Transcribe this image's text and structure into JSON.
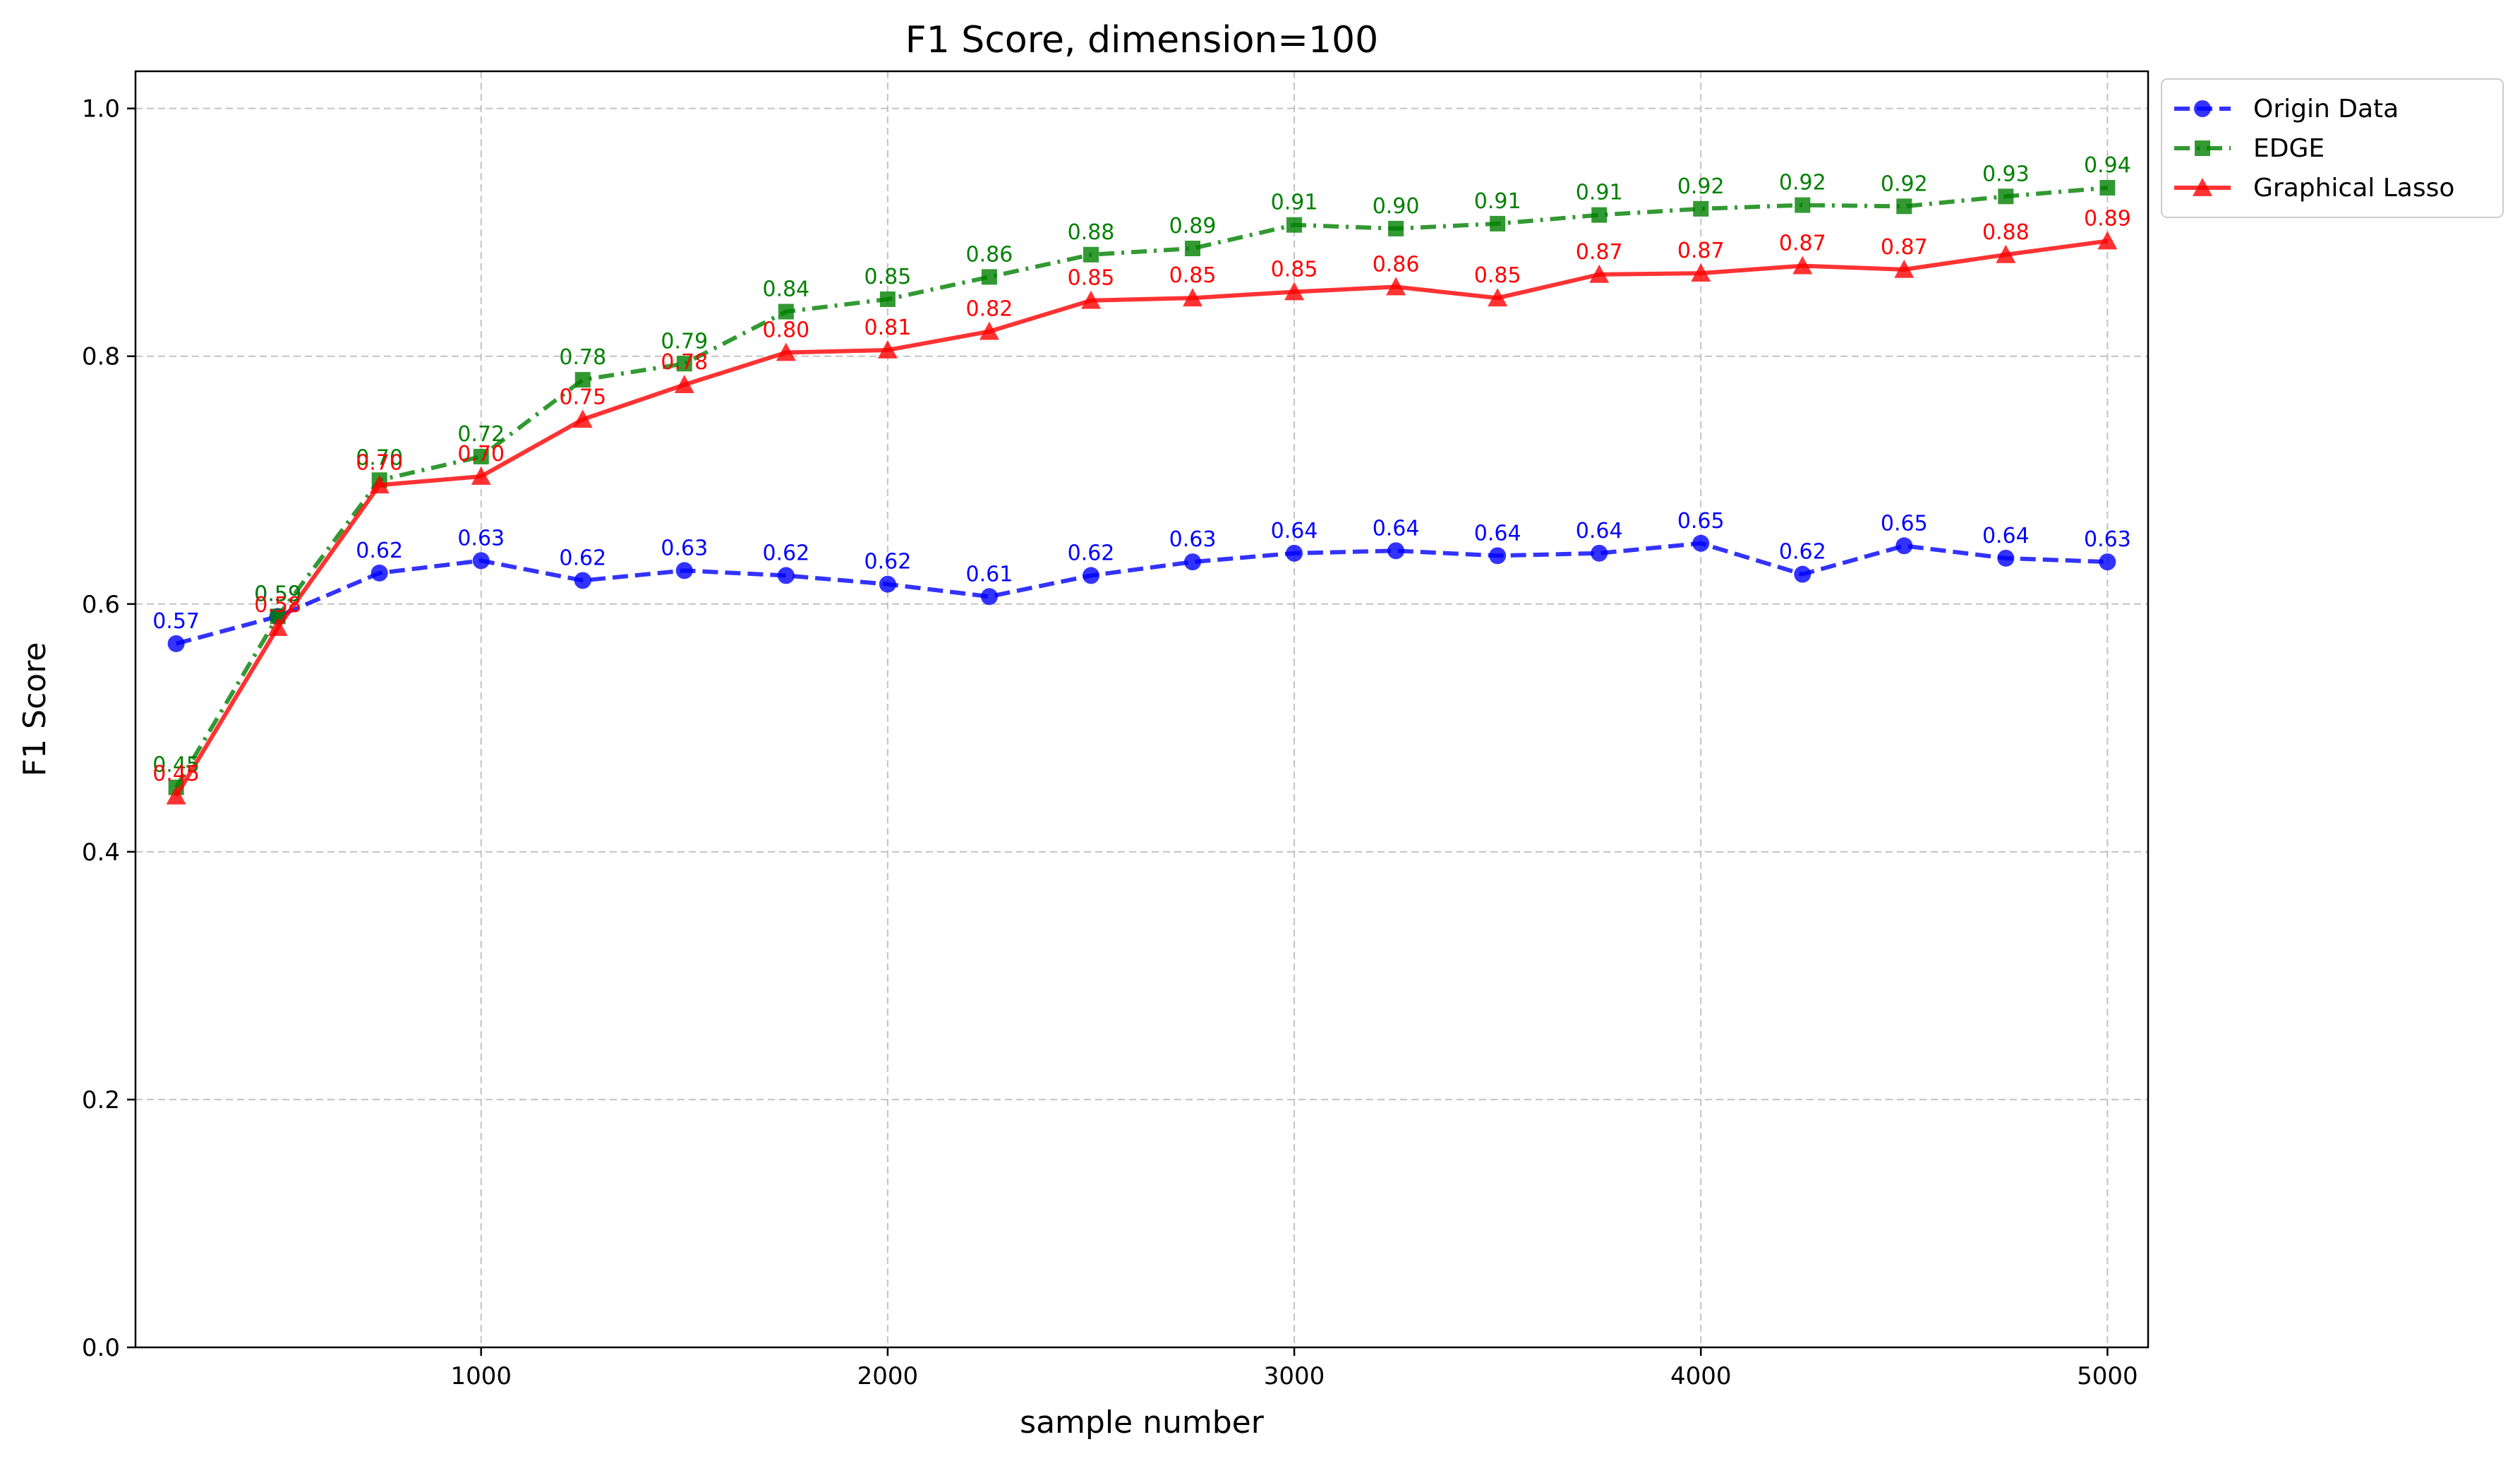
{
  "chart_data": {
    "type": "line",
    "title": "F1 Score, dimension=100",
    "xlabel": "sample number",
    "ylabel": "F1 Score",
    "xlim": [
      150,
      5100
    ],
    "ylim": [
      0.0,
      1.03
    ],
    "xticks": [
      1000,
      2000,
      3000,
      4000,
      5000
    ],
    "xtick_labels": [
      "1000",
      "2000",
      "3000",
      "4000",
      "5000"
    ],
    "yticks": [
      0.0,
      0.2,
      0.4,
      0.6,
      0.8,
      1.0
    ],
    "ytick_labels": [
      "0.0",
      "0.2",
      "0.4",
      "0.6",
      "0.8",
      "1.0"
    ],
    "grid": true,
    "legend_position": "outside-top-right",
    "x": [
      250,
      500,
      750,
      1000,
      1250,
      1500,
      1750,
      2000,
      2250,
      2500,
      2750,
      3000,
      3250,
      3500,
      3750,
      4000,
      4250,
      4500,
      4750,
      5000
    ],
    "series": [
      {
        "name": "Origin Data",
        "color": "#0000ff",
        "line_style": "dashed",
        "marker": "circle",
        "values": [
          0.568,
          0.59,
          0.625,
          0.635,
          0.619,
          0.627,
          0.623,
          0.616,
          0.606,
          0.623,
          0.634,
          0.641,
          0.643,
          0.639,
          0.641,
          0.649,
          0.624,
          0.647,
          0.637,
          0.634
        ],
        "labels": [
          "0.57",
          "0.59",
          "0.62",
          "0.63",
          "0.62",
          "0.63",
          "0.62",
          "0.62",
          "0.61",
          "0.62",
          "0.63",
          "0.64",
          "0.64",
          "0.64",
          "0.64",
          "0.65",
          "0.62",
          "0.65",
          "0.64",
          "0.63"
        ]
      },
      {
        "name": "EDGE",
        "color": "#008000",
        "line_style": "dashdot",
        "marker": "square",
        "values": [
          0.452,
          0.59,
          0.7,
          0.719,
          0.781,
          0.794,
          0.836,
          0.846,
          0.864,
          0.882,
          0.887,
          0.906,
          0.903,
          0.907,
          0.914,
          0.919,
          0.922,
          0.921,
          0.929,
          0.936
        ],
        "labels": [
          "0.45",
          "0.59",
          "0.70",
          "0.72",
          "0.78",
          "0.79",
          "0.84",
          "0.85",
          "0.86",
          "0.88",
          "0.89",
          "0.91",
          "0.90",
          "0.91",
          "0.91",
          "0.92",
          "0.92",
          "0.92",
          "0.93",
          "0.94"
        ]
      },
      {
        "name": "Graphical Lasso",
        "color": "#ff0000",
        "line_style": "solid",
        "marker": "triangle",
        "values": [
          0.445,
          0.581,
          0.696,
          0.703,
          0.749,
          0.777,
          0.803,
          0.805,
          0.82,
          0.845,
          0.847,
          0.852,
          0.856,
          0.847,
          0.866,
          0.867,
          0.873,
          0.87,
          0.882,
          0.893
        ],
        "labels": [
          "0.45",
          "0.58",
          "0.70",
          "0.70",
          "0.75",
          "0.78",
          "0.80",
          "0.81",
          "0.82",
          "0.85",
          "0.85",
          "0.85",
          "0.86",
          "0.85",
          "0.87",
          "0.87",
          "0.87",
          "0.87",
          "0.88",
          "0.89"
        ]
      }
    ]
  }
}
